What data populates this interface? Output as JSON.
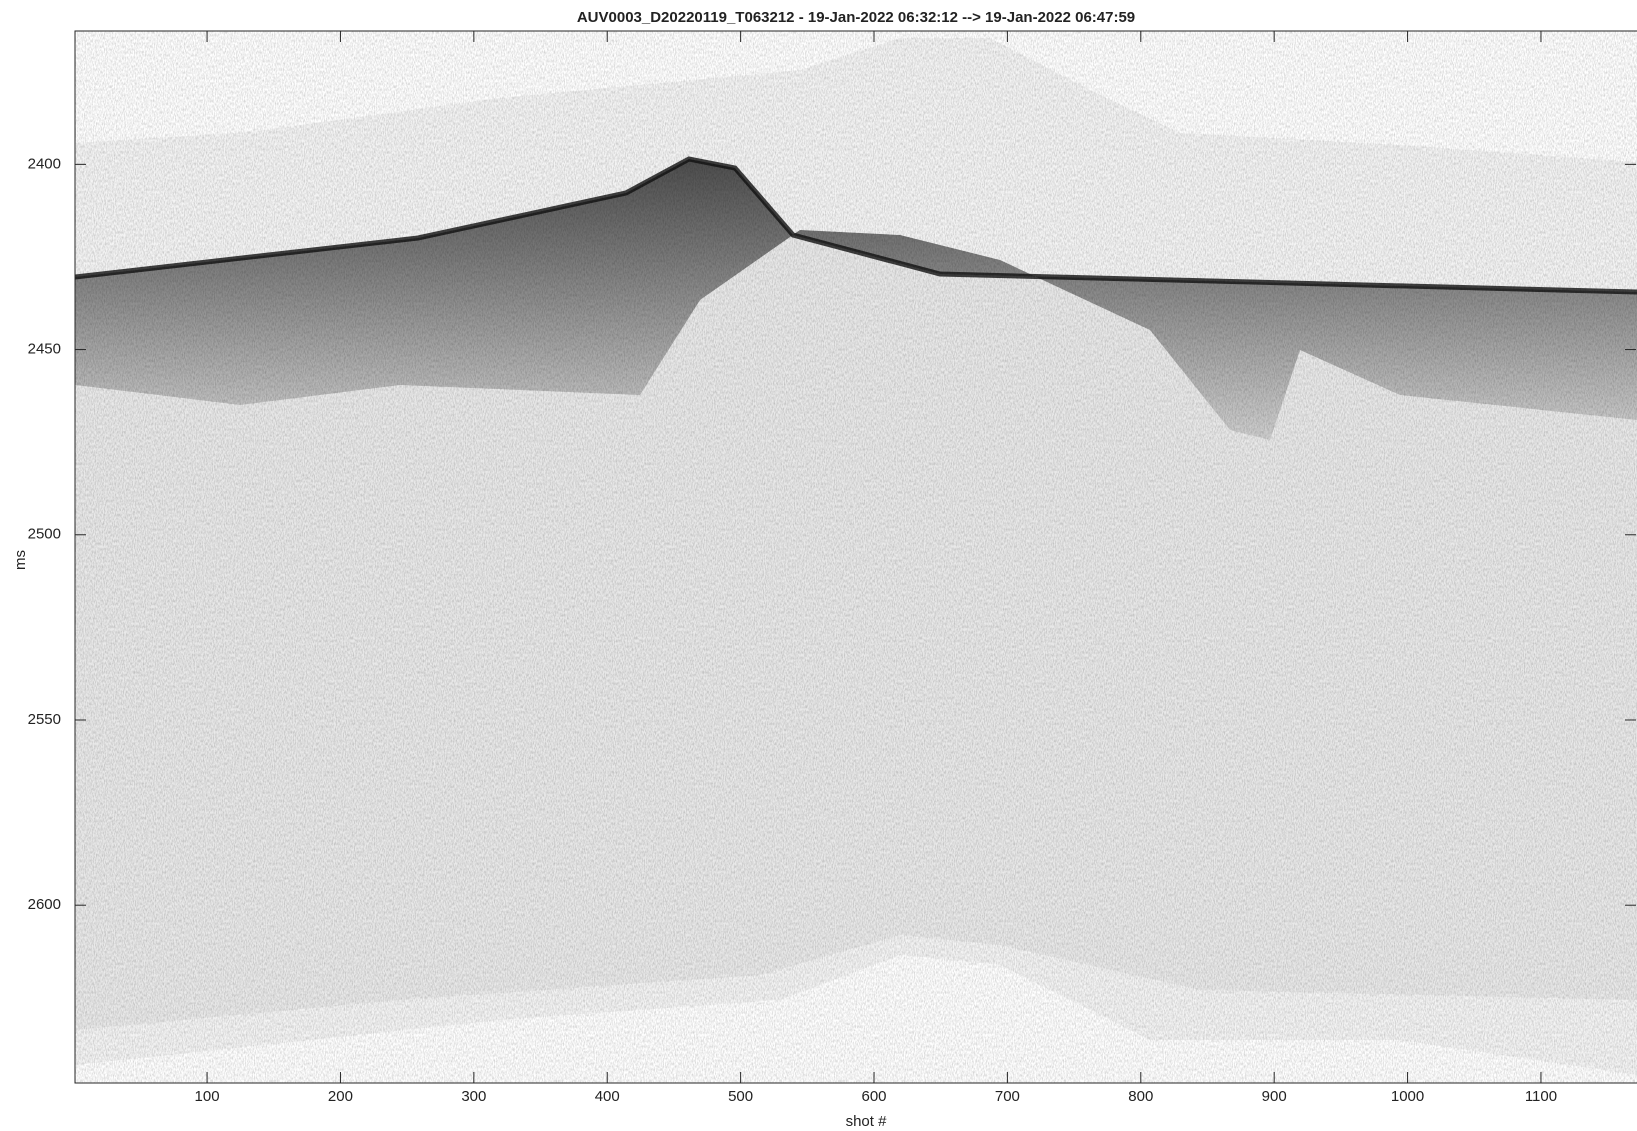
{
  "chart_data": {
    "type": "image",
    "title": "AUV0003_D20220119_T063212 - 19-Jan-2022 06:32:12 --> 19-Jan-2022 06:47:59",
    "xlabel": "shot #",
    "ylabel": "ms",
    "xlim": [
      1,
      1172
    ],
    "xticks": [
      100,
      200,
      300,
      400,
      500,
      600,
      700,
      800,
      900,
      1000,
      1100
    ],
    "ylim": [
      2364,
      2648
    ],
    "yticks": [
      2400,
      2450,
      2500,
      2550,
      2600
    ],
    "y_direction": "reverse",
    "colormap": "gray"
  }
}
